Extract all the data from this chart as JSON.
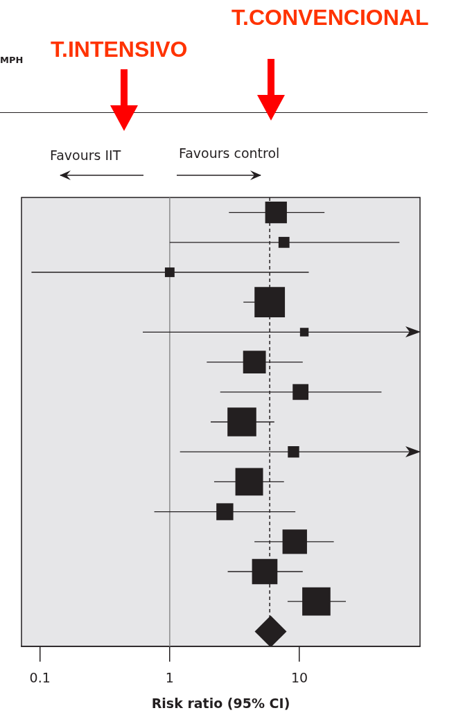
{
  "chart_data": {
    "type": "bubble",
    "orientation": "horizontal",
    "xlabel": "Risk ratio (95% CI)",
    "annotations": [
      "MPH",
      "T.INTENSIVO",
      "T.CONVENCIONAL",
      "Favours IIT",
      "Favours control"
    ],
    "categories": [
      null,
      null,
      null,
      null,
      null,
      null,
      null,
      null,
      null,
      null,
      null,
      null,
      null,
      null,
      null
    ],
    "series": [
      {
        "type": "bubble",
        "color": "#231f20",
        "marker": "square",
        "values": [
          6.6,
          7.6,
          1.0,
          5.9,
          10.9,
          4.5,
          10.2,
          3.6,
          9.0,
          4.1,
          2.66,
          9.2,
          5.4,
          13.5,
          null
        ],
        "errors": [
          [
            2.86,
            15.6
          ],
          [
            1.0,
            59
          ],
          [
            0.086,
            11.8
          ],
          [
            3.7,
            5.9
          ],
          [
            0.62,
            80
          ],
          [
            1.93,
            10.6
          ],
          [
            2.45,
            42.9
          ],
          [
            2.07,
            6.4
          ],
          [
            1.2,
            80
          ],
          [
            2.2,
            7.6
          ],
          [
            0.76,
            9.3
          ],
          [
            4.5,
            18.4
          ],
          [
            2.8,
            10.6
          ],
          [
            8.1,
            22.8
          ],
          null
        ],
        "sizes": [
          0.51,
          0.13,
          0.1,
          1,
          0.08,
          0.56,
          0.27,
          0.9,
          0.14,
          0.83,
          0.31,
          0.65,
          0.7,
          0.86,
          null
        ]
      },
      {
        "type": "scatter",
        "color": "#231f20",
        "marker": "diamond",
        "values": [
          null,
          null,
          null,
          null,
          null,
          null,
          null,
          null,
          null,
          null,
          null,
          null,
          null,
          null,
          6.0
        ]
      }
    ],
    "log": "x",
    "xlim": [
      0.072,
      85
    ],
    "xticks": [
      0.1,
      1,
      10
    ],
    "ref_lines": [
      {
        "axis": "x",
        "value": 1,
        "color": "#8a8a8a",
        "line_style": "solid"
      },
      {
        "axis": "x",
        "value": 5.9,
        "color": "#231f20",
        "line_style": "dashed"
      }
    ],
    "grid": false,
    "legend": false,
    "tick_labels": "x"
  }
}
